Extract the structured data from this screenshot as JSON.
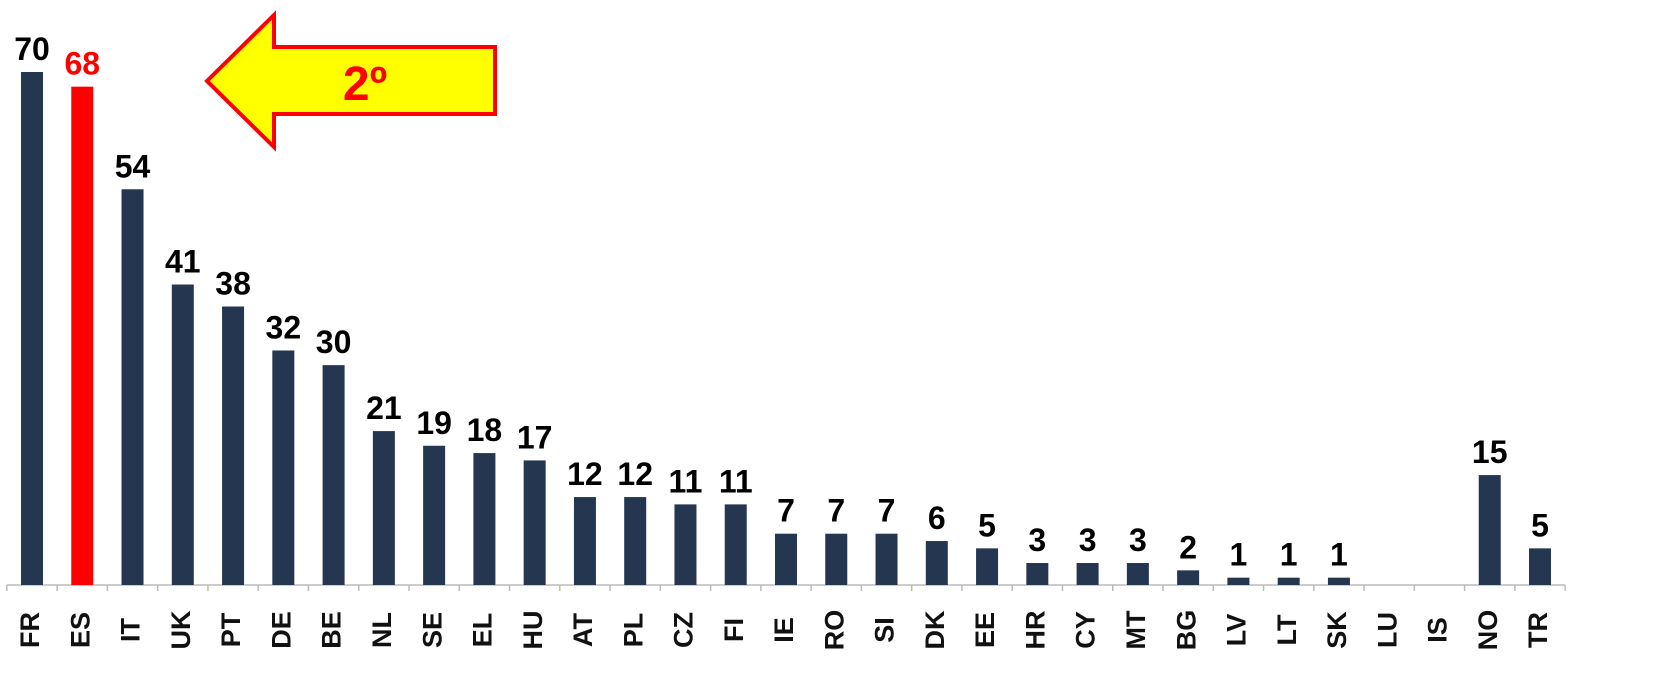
{
  "chart_data": {
    "type": "bar",
    "categories": [
      "FR",
      "ES",
      "IT",
      "UK",
      "PT",
      "DE",
      "BE",
      "NL",
      "SE",
      "EL",
      "HU",
      "AT",
      "PL",
      "CZ",
      "FI",
      "IE",
      "RO",
      "SI",
      "DK",
      "EE",
      "HR",
      "CY",
      "MT",
      "BG",
      "LV",
      "LT",
      "SK",
      "LU",
      "IS",
      "NO",
      "TR"
    ],
    "values": [
      70,
      68,
      54,
      41,
      38,
      32,
      30,
      21,
      19,
      18,
      17,
      12,
      12,
      11,
      11,
      7,
      7,
      7,
      6,
      5,
      3,
      3,
      3,
      2,
      1,
      1,
      1,
      null,
      null,
      15,
      5
    ],
    "colors": [
      "#243650",
      "#ff0000",
      "#243650",
      "#243650",
      "#243650",
      "#243650",
      "#243650",
      "#243650",
      "#243650",
      "#243650",
      "#243650",
      "#243650",
      "#243650",
      "#243650",
      "#243650",
      "#243650",
      "#243650",
      "#243650",
      "#243650",
      "#243650",
      "#243650",
      "#243650",
      "#243650",
      "#243650",
      "#243650",
      "#243650",
      "#243650",
      "#243650",
      "#243650",
      "#243650",
      "#243650"
    ],
    "ylim": [
      0,
      70
    ],
    "annotation": "2º"
  }
}
